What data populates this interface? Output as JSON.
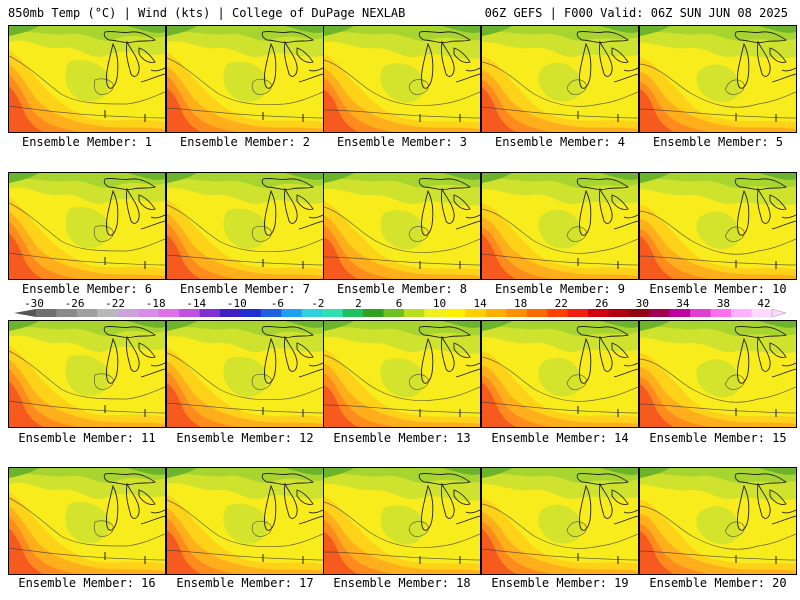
{
  "header": {
    "left": "850mb Temp (°C) | Wind (kts) | College of DuPage NEXLAB",
    "right": "06Z GEFS | F000 Valid: 06Z SUN JUN 08 2025"
  },
  "panels": [
    {
      "label": "Ensemble Member: 1"
    },
    {
      "label": "Ensemble Member: 2"
    },
    {
      "label": "Ensemble Member: 3"
    },
    {
      "label": "Ensemble Member: 4"
    },
    {
      "label": "Ensemble Member: 5"
    },
    {
      "label": "Ensemble Member: 6"
    },
    {
      "label": "Ensemble Member: 7"
    },
    {
      "label": "Ensemble Member: 8"
    },
    {
      "label": "Ensemble Member: 9"
    },
    {
      "label": "Ensemble Member: 10"
    },
    {
      "label": "Ensemble Member: 11"
    },
    {
      "label": "Ensemble Member: 12"
    },
    {
      "label": "Ensemble Member: 13"
    },
    {
      "label": "Ensemble Member: 14"
    },
    {
      "label": "Ensemble Member: 15"
    },
    {
      "label": "Ensemble Member: 16"
    },
    {
      "label": "Ensemble Member: 17"
    },
    {
      "label": "Ensemble Member: 18"
    },
    {
      "label": "Ensemble Member: 19"
    },
    {
      "label": "Ensemble Member: 20"
    }
  ],
  "colorbar": {
    "labels": [
      "-30",
      "-26",
      "-22",
      "-18",
      "-14",
      "-10",
      "-6",
      "-2",
      "2",
      "6",
      "10",
      "14",
      "18",
      "22",
      "26",
      "30",
      "34",
      "38",
      "42"
    ],
    "colors": [
      "#6f6f6f",
      "#8a8a8a",
      "#a0a0a0",
      "#b8b8b8",
      "#c9a3d9",
      "#d88ee8",
      "#e070e8",
      "#c050e0",
      "#8030d0",
      "#4020c0",
      "#2030d0",
      "#2060e0",
      "#20a0f0",
      "#30d0e0",
      "#30e0b0",
      "#20c060",
      "#30a020",
      "#70c020",
      "#b8e020",
      "#f0f020",
      "#fff000",
      "#ffd000",
      "#ffb000",
      "#ff9000",
      "#ff6a00",
      "#ff4000",
      "#f02010",
      "#d00010",
      "#b00010",
      "#900010",
      "#a00050",
      "#c000a0",
      "#e040d0",
      "#ff70f0",
      "#ffb0ff",
      "#ffd8ff"
    ]
  },
  "map_colors": {
    "green_dark": "#6cb42c",
    "green": "#a8d430",
    "lime": "#cfe22e",
    "yellow": "#f8ec1c",
    "yellow_orange": "#ffd21a",
    "orange": "#ffae1c",
    "dark_orange": "#ff8a1e",
    "red_orange": "#f65a1e",
    "contour": "#3a3a3a"
  }
}
